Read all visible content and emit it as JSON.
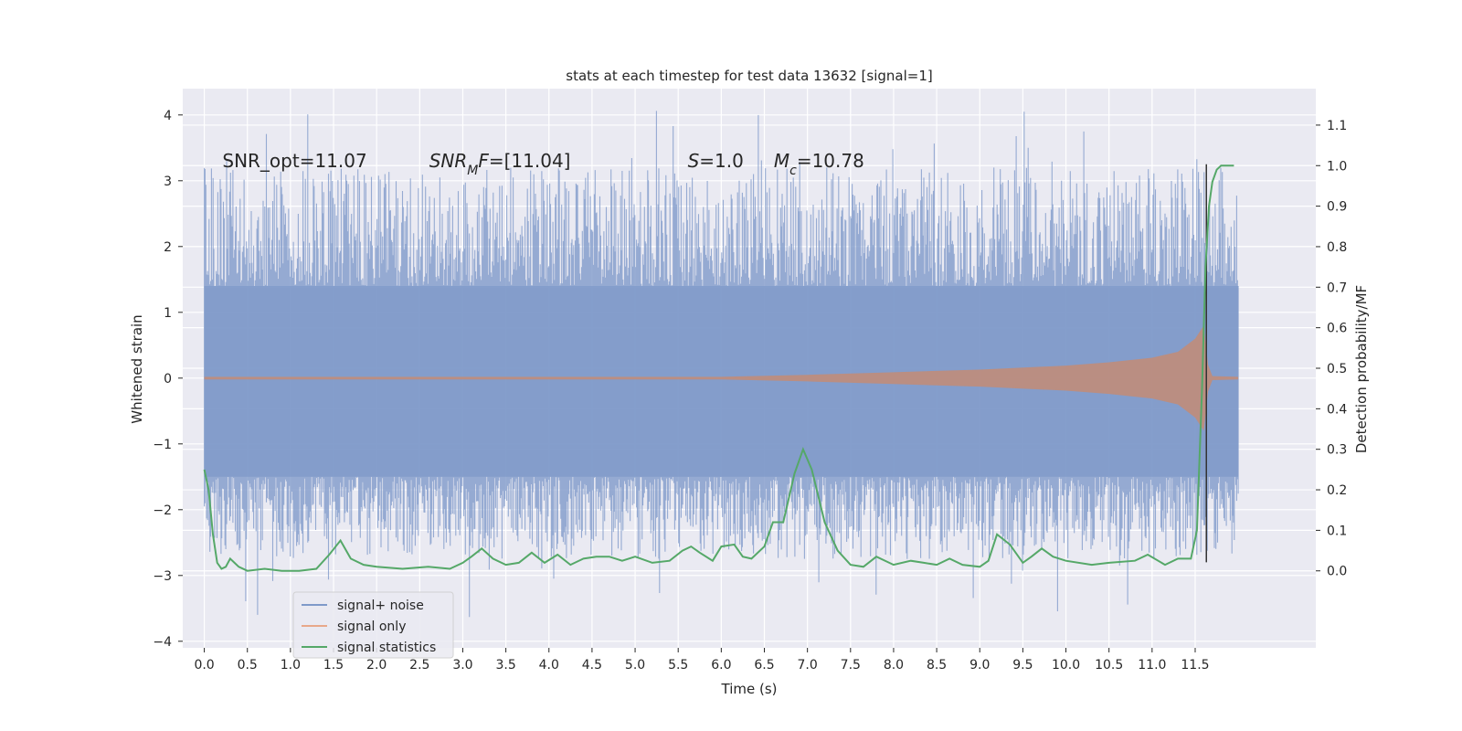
{
  "chart_data": {
    "type": "line",
    "title": "stats at each timestep for test data 13632 [signal=1]",
    "xlabel": "Time (s)",
    "ylabel": "Whitened strain",
    "y2label": "Detection probability/MF",
    "xlim": [
      -0.25,
      12.9
    ],
    "ylim": [
      -4.1,
      4.4
    ],
    "y2lim": [
      -0.19,
      1.19
    ],
    "x_ticks": [
      0.0,
      0.5,
      1.0,
      1.5,
      2.0,
      2.5,
      3.0,
      3.5,
      4.0,
      4.5,
      5.0,
      5.5,
      6.0,
      6.5,
      7.0,
      7.5,
      8.0,
      8.5,
      9.0,
      9.5,
      10.0,
      10.5,
      11.0,
      11.5
    ],
    "x_tick_labels": [
      "0.0",
      "0.5",
      "1.0",
      "1.5",
      "2.0",
      "2.5",
      "3.0",
      "3.5",
      "4.0",
      "4.5",
      "5.0",
      "5.5",
      "6.0",
      "6.5",
      "7.0",
      "7.5",
      "8.0",
      "8.5",
      "9.0",
      "9.5",
      "10.0",
      "10.5",
      "11.0",
      "11.5"
    ],
    "y_ticks": [
      -4,
      -3,
      -2,
      -1,
      0,
      1,
      2,
      3,
      4
    ],
    "y_tick_labels": [
      "−4",
      "−3",
      "−2",
      "−1",
      "0",
      "1",
      "2",
      "3",
      "4"
    ],
    "y2_ticks": [
      0.0,
      0.1,
      0.2,
      0.3,
      0.4,
      0.5,
      0.6,
      0.7,
      0.8,
      0.9,
      1.0,
      1.1
    ],
    "y2_tick_labels": [
      "0.0",
      "0.1",
      "0.2",
      "0.3",
      "0.4",
      "0.5",
      "0.6",
      "0.7",
      "0.8",
      "0.9",
      "1.0",
      "1.1"
    ],
    "grid": true,
    "legend_position": "lower-left",
    "colors": {
      "background": "#eaeaf2",
      "grid": "#ffffff",
      "noise": "#7f9ac9",
      "signal": "#dd8452",
      "stats": "#55a868",
      "marker": "#333333"
    },
    "series": [
      {
        "name": "signal+ noise",
        "color": "#4c72b0",
        "envelope": {
          "x": [
            0.0,
            12.0
          ],
          "core_upper": 1.4,
          "core_lower": -1.5,
          "max": 4.1,
          "min": -3.65
        }
      },
      {
        "name": "signal only",
        "color": "#dd8452",
        "amplitude": {
          "x": [
            0.0,
            6.0,
            7.0,
            8.0,
            9.0,
            10.0,
            10.5,
            11.0,
            11.3,
            11.5,
            11.6,
            11.65,
            11.7,
            12.0
          ],
          "y": [
            0.02,
            0.02,
            0.05,
            0.09,
            0.13,
            0.19,
            0.24,
            0.31,
            0.4,
            0.6,
            0.8,
            0.2,
            0.03,
            0.02
          ]
        }
      },
      {
        "name": "signal statistics",
        "color": "#55a868",
        "x": [
          0.0,
          0.05,
          0.1,
          0.15,
          0.2,
          0.25,
          0.3,
          0.35,
          0.4,
          0.5,
          0.7,
          0.9,
          1.1,
          1.3,
          1.45,
          1.58,
          1.7,
          1.85,
          2.0,
          2.3,
          2.6,
          2.85,
          3.0,
          3.1,
          3.22,
          3.35,
          3.5,
          3.65,
          3.8,
          3.95,
          4.1,
          4.25,
          4.4,
          4.55,
          4.7,
          4.85,
          5.0,
          5.2,
          5.4,
          5.55,
          5.65,
          5.75,
          5.9,
          6.0,
          6.15,
          6.25,
          6.35,
          6.5,
          6.6,
          6.72,
          6.85,
          6.95,
          7.05,
          7.2,
          7.35,
          7.5,
          7.65,
          7.8,
          8.0,
          8.2,
          8.35,
          8.5,
          8.65,
          8.8,
          9.0,
          9.1,
          9.2,
          9.35,
          9.5,
          9.6,
          9.72,
          9.85,
          10.0,
          10.3,
          10.5,
          10.8,
          10.95,
          11.15,
          11.3,
          11.45,
          11.52,
          11.58,
          11.62,
          11.66,
          11.7,
          11.75,
          11.8,
          11.85,
          11.95
        ],
        "y": [
          0.25,
          0.2,
          0.09,
          0.02,
          0.005,
          0.01,
          0.03,
          0.02,
          0.01,
          0.0,
          0.005,
          0.0,
          0.0,
          0.005,
          0.04,
          0.075,
          0.03,
          0.015,
          0.01,
          0.005,
          0.01,
          0.005,
          0.02,
          0.035,
          0.055,
          0.03,
          0.015,
          0.02,
          0.045,
          0.02,
          0.04,
          0.015,
          0.03,
          0.035,
          0.035,
          0.025,
          0.035,
          0.02,
          0.025,
          0.05,
          0.06,
          0.045,
          0.025,
          0.06,
          0.065,
          0.035,
          0.03,
          0.06,
          0.12,
          0.12,
          0.24,
          0.3,
          0.25,
          0.12,
          0.05,
          0.015,
          0.01,
          0.035,
          0.015,
          0.025,
          0.02,
          0.015,
          0.03,
          0.015,
          0.01,
          0.025,
          0.09,
          0.065,
          0.02,
          0.035,
          0.055,
          0.035,
          0.025,
          0.015,
          0.02,
          0.025,
          0.04,
          0.015,
          0.03,
          0.03,
          0.1,
          0.45,
          0.75,
          0.9,
          0.96,
          0.99,
          1.0,
          1.0,
          1.0
        ]
      }
    ],
    "marker_line": {
      "x": 11.63,
      "y_range": [
        -2.8,
        3.25
      ]
    },
    "annotations": [
      {
        "x": 0.21,
        "y": 3.3,
        "parts": [
          {
            "t": "SNR_opt=11.07",
            "i": false
          }
        ]
      },
      {
        "x": 2.61,
        "y": 3.3,
        "parts": [
          {
            "t": "SNR",
            "i": true
          },
          {
            "t": "M",
            "i": true,
            "sub": true
          },
          {
            "t": "F",
            "i": true
          },
          {
            "t": "=[11.04]",
            "i": false
          }
        ]
      },
      {
        "x": 5.61,
        "y": 3.3,
        "parts": [
          {
            "t": "S",
            "i": true
          },
          {
            "t": "=1.0",
            "i": false
          }
        ]
      },
      {
        "x": 6.61,
        "y": 3.3,
        "parts": [
          {
            "t": "M",
            "i": true
          },
          {
            "t": "c",
            "i": true,
            "sub": true
          },
          {
            "t": "=10.78",
            "i": false
          }
        ]
      }
    ]
  }
}
